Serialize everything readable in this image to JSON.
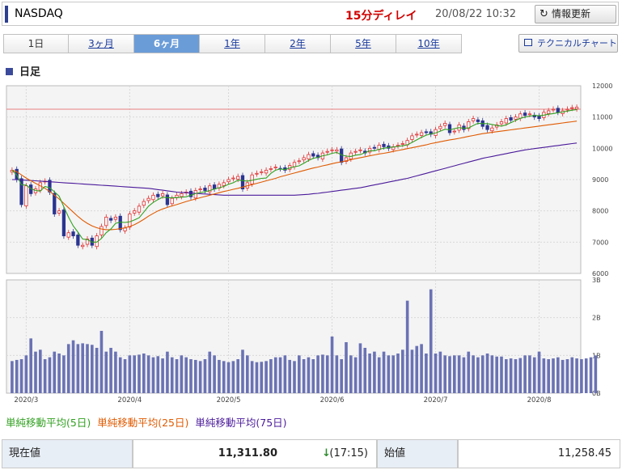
{
  "header": {
    "title": "NASDAQ",
    "delay": "15分ディレイ",
    "datetime": "20/08/22 10:32",
    "refresh_label": "情報更新",
    "refresh_icon": "refresh-icon"
  },
  "tabs": [
    {
      "label": "1日",
      "active": false
    },
    {
      "label": "3ヶ月",
      "active": false
    },
    {
      "label": "6ヶ月",
      "active": true
    },
    {
      "label": "1年",
      "active": false
    },
    {
      "label": "2年",
      "active": false
    },
    {
      "label": "5年",
      "active": false
    },
    {
      "label": "10年",
      "active": false
    }
  ],
  "technical_chart_label": "テクニカルチャート",
  "section_title": "日足",
  "legend": {
    "ma5": "単純移動平均(5日)",
    "ma25": "単純移動平均(25日)",
    "ma75": "単純移動平均(75日)"
  },
  "colors": {
    "up": "#e03030",
    "down": "#2a3590",
    "ma5": "#30a020",
    "ma25": "#e05a00",
    "ma75": "#4a1a9a",
    "volume": "#6a72b4",
    "refline": "#e88080"
  },
  "quote": {
    "current_label": "現在値",
    "current_value": "11,311.80",
    "arrow": "↓",
    "arrow_color": "#2e8b2e",
    "current_time": "(17:15)",
    "open_label": "始値",
    "open_value": "11,258.45"
  },
  "chart_data": {
    "type": "candlestick",
    "price_axis": {
      "min": 6000,
      "max": 12000,
      "ticks": [
        6000,
        7000,
        8000,
        9000,
        10000,
        11000,
        12000
      ]
    },
    "volume_axis": {
      "min": 0,
      "max": 3,
      "tick_labels": [
        "0B",
        "1B",
        "2B",
        "3B"
      ],
      "tick_values": [
        0,
        1,
        2,
        3
      ]
    },
    "x_tick_labels": [
      {
        "label": "2020/3",
        "index": 3
      },
      {
        "label": "2020/4",
        "index": 25
      },
      {
        "label": "2020/5",
        "index": 46
      },
      {
        "label": "2020/6",
        "index": 68
      },
      {
        "label": "2020/7",
        "index": 90
      },
      {
        "label": "2020/8",
        "index": 112
      }
    ],
    "reference_line": 11250,
    "closes": [
      9300,
      9000,
      8200,
      8800,
      8550,
      8700,
      8900,
      8950,
      8600,
      7900,
      8000,
      7200,
      7300,
      7200,
      6900,
      6900,
      7100,
      6900,
      7200,
      7500,
      7800,
      7700,
      7800,
      7400,
      7450,
      7900,
      8000,
      8150,
      8300,
      8400,
      8500,
      8450,
      8550,
      8200,
      8400,
      8500,
      8550,
      8600,
      8450,
      8650,
      8700,
      8650,
      8800,
      8700,
      8850,
      8900,
      9000,
      9050,
      9100,
      8700,
      8900,
      9150,
      9200,
      9250,
      9300,
      9350,
      9400,
      9350,
      9300,
      9450,
      9550,
      9600,
      9700,
      9800,
      9750,
      9700,
      9850,
      9900,
      9950,
      9950,
      9550,
      9700,
      9850,
      9900,
      9950,
      9850,
      10000,
      10000,
      10100,
      10050,
      10000,
      10050,
      10100,
      10150,
      10250,
      10400,
      10450,
      10500,
      10500,
      10450,
      10600,
      10700,
      10800,
      10500,
      10550,
      10750,
      10600,
      10850,
      10950,
      10850,
      10700,
      10600,
      10650,
      10750,
      10850,
      10950,
      10900,
      11000,
      11100,
      11050,
      11100,
      11000,
      10950,
      11150,
      11200,
      11250,
      11150,
      11200,
      11250,
      11300,
      11311.8
    ],
    "ma5": [
      9300,
      9150,
      8833,
      8825,
      8710,
      8650,
      8630,
      8780,
      8740,
      8610,
      8470,
      8130,
      7800,
      7520,
      7320,
      7100,
      7080,
      7000,
      7000,
      7120,
      7300,
      7420,
      7600,
      7640,
      7630,
      7650,
      7710,
      7780,
      7960,
      8150,
      8270,
      8360,
      8440,
      8420,
      8420,
      8420,
      8440,
      8450,
      8500,
      8550,
      8590,
      8610,
      8650,
      8700,
      8740,
      8780,
      8850,
      8900,
      8980,
      8970,
      8950,
      8980,
      9010,
      9040,
      9050,
      9200,
      9300,
      9340,
      9320,
      9370,
      9410,
      9440,
      9520,
      9610,
      9680,
      9710,
      9760,
      9790,
      9840,
      9870,
      9790,
      9750,
      9740,
      9780,
      9800,
      9860,
      9920,
      9920,
      9970,
      10000,
      10030,
      10040,
      10060,
      10080,
      10110,
      10190,
      10270,
      10350,
      10420,
      10460,
      10490,
      10550,
      10610,
      10590,
      10630,
      10660,
      10640,
      10650,
      10730,
      10800,
      10790,
      10790,
      10760,
      10730,
      10710,
      10750,
      10820,
      10890,
      10960,
      11000,
      11030,
      11050,
      11040,
      11060,
      11090,
      11110,
      11140,
      11160,
      11190,
      11220,
      11240
    ],
    "ma25": [
      9300,
      9250,
      9150,
      9050,
      8960,
      8880,
      8800,
      8720,
      8620,
      8500,
      8380,
      8240,
      8100,
      7960,
      7820,
      7700,
      7600,
      7520,
      7460,
      7420,
      7400,
      7400,
      7410,
      7430,
      7460,
      7500,
      7560,
      7640,
      7730,
      7830,
      7920,
      8000,
      8060,
      8110,
      8160,
      8200,
      8250,
      8300,
      8340,
      8380,
      8420,
      8460,
      8500,
      8540,
      8580,
      8620,
      8650,
      8690,
      8720,
      8760,
      8800,
      8840,
      8880,
      8920,
      8960,
      9000,
      9040,
      9090,
      9130,
      9170,
      9210,
      9250,
      9290,
      9330,
      9370,
      9400,
      9440,
      9470,
      9510,
      9540,
      9570,
      9600,
      9640,
      9670,
      9700,
      9730,
      9760,
      9790,
      9820,
      9840,
      9870,
      9900,
      9930,
      9960,
      9990,
      10020,
      10050,
      10080,
      10110,
      10150,
      10180,
      10210,
      10240,
      10270,
      10290,
      10320,
      10350,
      10380,
      10410,
      10440,
      10470,
      10490,
      10510,
      10530,
      10550,
      10570,
      10590,
      10610,
      10630,
      10650,
      10670,
      10690,
      10710,
      10730,
      10750,
      10770,
      10790,
      10810,
      10830,
      10850,
      10870
    ],
    "ma75": [
      9000,
      9000,
      8990,
      8980,
      8970,
      8960,
      8950,
      8940,
      8930,
      8920,
      8910,
      8900,
      8890,
      8880,
      8870,
      8860,
      8850,
      8840,
      8830,
      8820,
      8810,
      8800,
      8790,
      8780,
      8770,
      8760,
      8750,
      8740,
      8730,
      8720,
      8700,
      8680,
      8660,
      8640,
      8620,
      8600,
      8590,
      8580,
      8570,
      8560,
      8550,
      8540,
      8530,
      8520,
      8510,
      8500,
      8500,
      8500,
      8500,
      8500,
      8500,
      8500,
      8500,
      8500,
      8500,
      8500,
      8500,
      8500,
      8500,
      8500,
      8500,
      8510,
      8520,
      8530,
      8550,
      8560,
      8580,
      8600,
      8620,
      8640,
      8660,
      8680,
      8700,
      8720,
      8740,
      8770,
      8800,
      8830,
      8860,
      8890,
      8920,
      8950,
      8980,
      9010,
      9040,
      9080,
      9120,
      9160,
      9200,
      9240,
      9280,
      9320,
      9360,
      9400,
      9440,
      9480,
      9520,
      9560,
      9600,
      9640,
      9680,
      9710,
      9740,
      9770,
      9800,
      9830,
      9860,
      9890,
      9920,
      9950,
      9970,
      9990,
      10010,
      10030,
      10050,
      10070,
      10090,
      10110,
      10130,
      10150,
      10170
    ],
    "volumes": [
      0.85,
      0.88,
      0.9,
      1.0,
      1.45,
      1.1,
      1.15,
      0.9,
      0.95,
      1.1,
      1.05,
      1.0,
      1.3,
      1.4,
      1.3,
      1.32,
      1.3,
      1.28,
      1.2,
      1.65,
      1.1,
      1.2,
      1.1,
      0.95,
      0.9,
      1.0,
      1.0,
      1.02,
      1.05,
      1.0,
      0.95,
      0.98,
      0.92,
      1.1,
      0.95,
      0.9,
      1.0,
      0.95,
      0.9,
      0.88,
      0.85,
      0.9,
      1.1,
      1.0,
      0.88,
      0.85,
      0.82,
      0.85,
      0.9,
      1.15,
      1.0,
      0.85,
      0.82,
      0.83,
      0.85,
      0.9,
      0.95,
      0.95,
      1.0,
      0.88,
      0.85,
      1.0,
      0.9,
      0.95,
      0.9,
      1.0,
      1.02,
      1.0,
      1.5,
      1.0,
      0.9,
      1.35,
      1.0,
      0.95,
      1.32,
      1.2,
      1.05,
      1.1,
      0.95,
      1.1,
      1.0,
      1.0,
      1.05,
      1.15,
      2.45,
      1.15,
      1.25,
      1.3,
      1.05,
      2.75,
      1.05,
      1.1,
      1.0,
      0.98,
      1.0,
      1.0,
      0.95,
      1.1,
      1.0,
      0.95,
      1.0,
      1.05,
      1.0,
      0.97,
      0.97,
      0.9,
      0.92,
      0.9,
      0.93,
      1.0,
      1.0,
      0.95,
      1.1,
      0.92,
      0.9,
      0.92,
      0.95,
      0.88,
      0.9,
      0.95,
      0.92,
      0.9,
      0.92,
      0.95,
      1.0
    ]
  }
}
